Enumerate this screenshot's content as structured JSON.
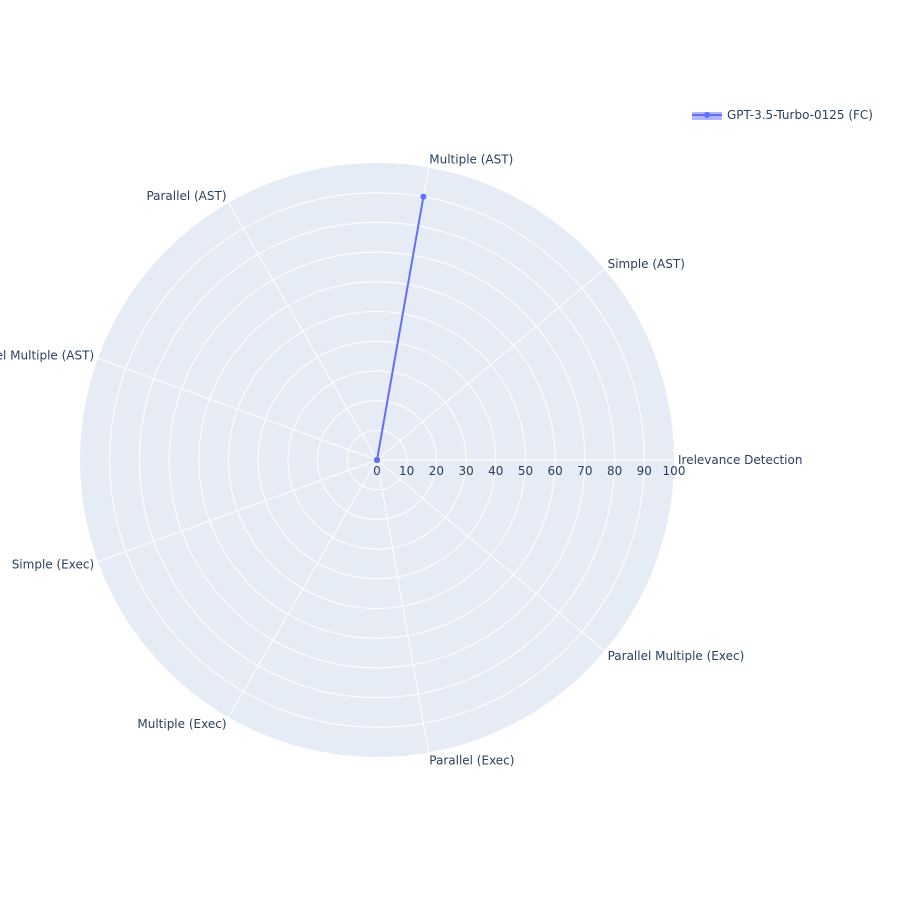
{
  "chart_data": {
    "type": "radar",
    "axes": [
      "Irelevance Detection",
      "Simple (AST)",
      "Multiple (AST)",
      "Parallel (AST)",
      "Parallel Multiple (AST)",
      "Simple (Exec)",
      "Multiple (Exec)",
      "Parallel (Exec)",
      "Parallel Multiple (Exec)"
    ],
    "radial_ticks": [
      "0",
      "10",
      "20",
      "30",
      "40",
      "50",
      "60",
      "70",
      "80",
      "90",
      "100"
    ],
    "range": [
      0,
      100
    ],
    "series": [
      {
        "name": "GPT-3.5-Turbo-0125 (FC)",
        "color": "#636efa",
        "values": [
          0,
          0,
          90,
          0,
          0,
          0,
          0,
          0,
          0
        ]
      }
    ],
    "legend_position": "top-right",
    "colors": {
      "polar_bg": "#e5ecf6",
      "grid": "#ffffff",
      "text": "#2a3f5f",
      "series": "#636efa"
    }
  }
}
